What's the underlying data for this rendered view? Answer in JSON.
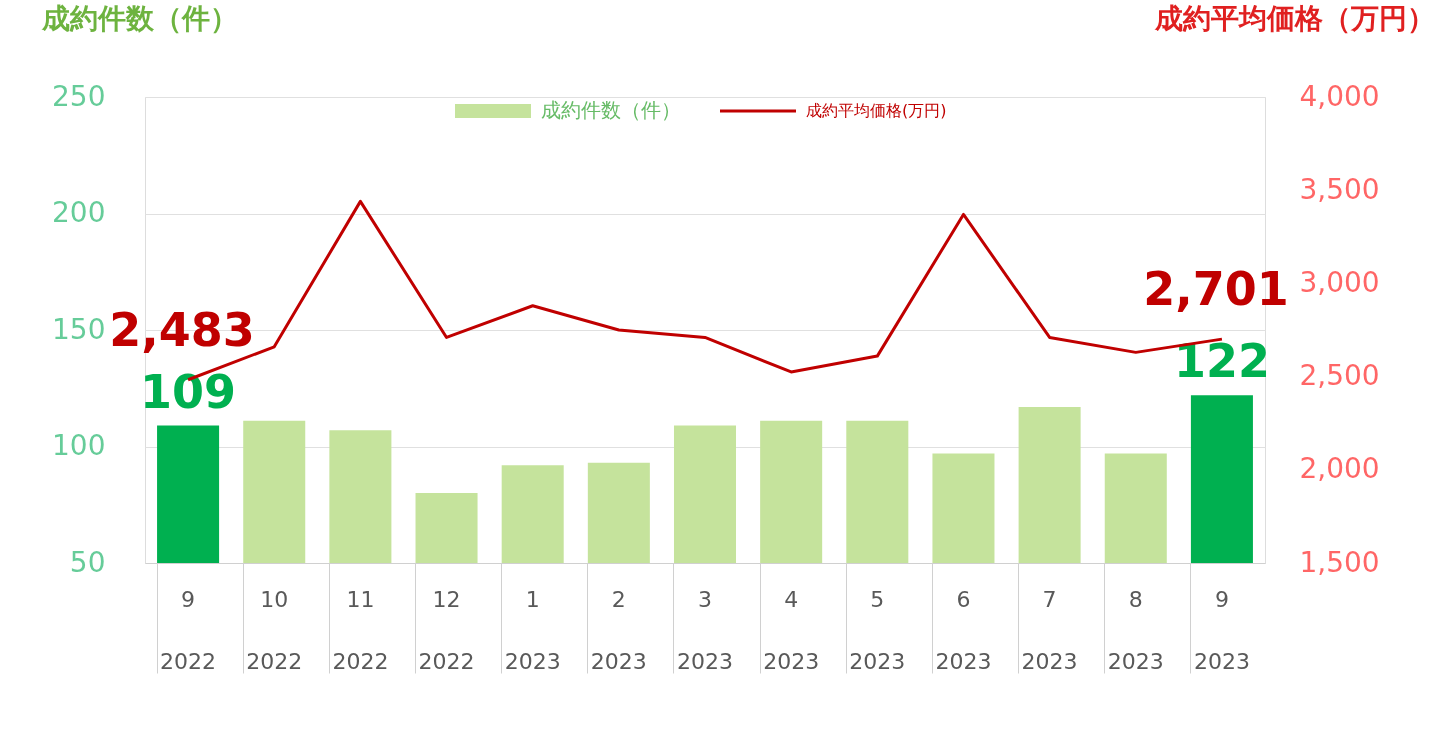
{
  "chart_data": {
    "type": "bar",
    "ylabel": "成約件数（件）",
    "y2label": "成約平均価格（万円）",
    "categories": [
      "9\n2022",
      "10\n2022",
      "11\n2022",
      "12\n2022",
      "1\n2023",
      "2\n2023",
      "3\n2023",
      "4\n2023",
      "5\n2023",
      "6\n2023",
      "7\n2023",
      "8\n2023",
      "9\n2023"
    ],
    "series": [
      {
        "name": "成約件数（件）",
        "type": "bar",
        "color": "#c5e39c",
        "colors": [
          "#00b050",
          "#c5e39c",
          "#c5e39c",
          "#c5e39c",
          "#c5e39c",
          "#c5e39c",
          "#c5e39c",
          "#c5e39c",
          "#c5e39c",
          "#c5e39c",
          "#c5e39c",
          "#c5e39c",
          "#00b050"
        ],
        "values": [
          109,
          111,
          107,
          80,
          92,
          93,
          109,
          111,
          111,
          97,
          117,
          97,
          122
        ],
        "value_labels": [
          "109",
          null,
          null,
          null,
          null,
          null,
          null,
          null,
          null,
          null,
          null,
          null,
          "122"
        ]
      },
      {
        "name": "成約平均価格(万円)",
        "type": "line",
        "axis": "y2",
        "color": "#c00000",
        "values": [
          2483,
          2660,
          3440,
          2710,
          2880,
          2750,
          2710,
          2525,
          2610,
          3370,
          2710,
          2630,
          2701
        ],
        "value_labels": [
          "2,483",
          null,
          null,
          null,
          null,
          null,
          null,
          null,
          null,
          null,
          null,
          null,
          "2,701"
        ]
      }
    ],
    "ylim": [
      50,
      250
    ],
    "yticks": [
      50,
      100,
      150,
      200,
      250
    ],
    "y2lim": [
      1500,
      4000
    ],
    "y2ticks": [
      {
        "value": 1500,
        "label": "1,500"
      },
      {
        "value": 2000,
        "label": "2,000"
      },
      {
        "value": 2500,
        "label": "2,500"
      },
      {
        "value": 3000,
        "label": "3,000"
      },
      {
        "value": 3500,
        "label": "3,500"
      },
      {
        "value": 4000,
        "label": "4,000"
      }
    ],
    "grid": "y",
    "legend": "top"
  }
}
